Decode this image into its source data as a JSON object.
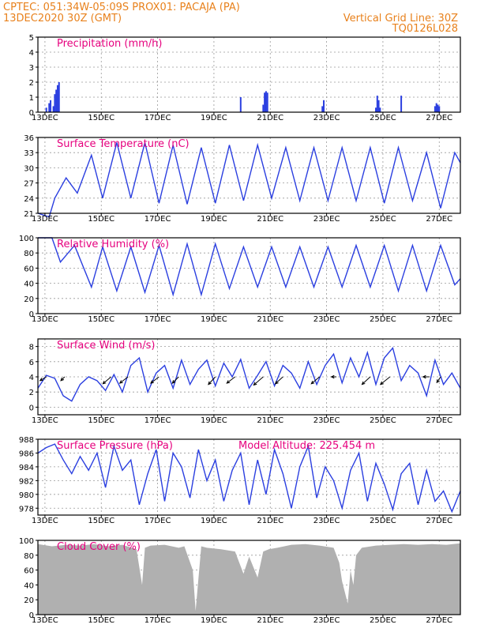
{
  "header": {
    "line1_left": "CPTEC:   051:34W-05:09S   PROX01: PACAJA (PA)",
    "line2_left": "13DEC2020 30Z (GMT)",
    "line2_right": "Vertical Grid Line: 30Z",
    "line3_right": "TQ0126L028"
  },
  "colors": {
    "header": "#e8811c",
    "title": "#e6007e",
    "series": "#2b3fe0",
    "cloud": "#b0b0b0"
  },
  "chart_data": [
    {
      "type": "bar",
      "title": "Precipitation (mm/h)",
      "x_tick_labels": [
        "13DEC",
        "15DEC",
        "17DEC",
        "19DEC",
        "21DEC",
        "23DEC",
        "25DEC",
        "27DEC"
      ],
      "x_range": [
        0,
        15.0
      ],
      "ylim": [
        0,
        5
      ],
      "y_ticks": [
        0,
        1,
        2,
        3,
        4,
        5
      ],
      "grid": true,
      "x": [
        0.3,
        0.4,
        0.45,
        0.55,
        0.6,
        0.65,
        0.7,
        0.75,
        7.2,
        8.0,
        8.05,
        8.1,
        8.15,
        10.1,
        10.15,
        12.0,
        12.05,
        12.1,
        12.15,
        12.9,
        14.1,
        14.15,
        14.2,
        14.25
      ],
      "values": [
        0.3,
        0.6,
        0.8,
        0.4,
        1.2,
        1.5,
        1.8,
        2.0,
        1.0,
        0.5,
        1.3,
        1.4,
        1.3,
        0.4,
        0.8,
        0.3,
        1.1,
        0.8,
        0.3,
        1.1,
        0.4,
        0.6,
        0.5,
        0.4
      ]
    },
    {
      "type": "line",
      "title": "Surface Temperature (nC)",
      "x_tick_labels": [
        "13DEC",
        "15DEC",
        "17DEC",
        "19DEC",
        "21DEC",
        "23DEC",
        "25DEC",
        "27DEC"
      ],
      "x_range": [
        0,
        15.0
      ],
      "ylim": [
        21,
        36
      ],
      "y_ticks": [
        21,
        24,
        27,
        30,
        33,
        36
      ],
      "grid": true,
      "series": [
        {
          "x": [
            0,
            0.4,
            0.6,
            1.0,
            1.4,
            1.9,
            2.3,
            2.8,
            3.3,
            3.8,
            4.3,
            4.8,
            5.3,
            5.8,
            6.3,
            6.8,
            7.3,
            7.8,
            8.3,
            8.8,
            9.3,
            9.8,
            10.3,
            10.8,
            11.3,
            11.8,
            12.3,
            12.8,
            13.3,
            13.8,
            14.3,
            14.8,
            15.0
          ],
          "values": [
            21.0,
            20.3,
            24.0,
            28.0,
            25.0,
            32.5,
            24.0,
            35.0,
            24.0,
            35.0,
            23.0,
            34.5,
            22.8,
            34.0,
            23.0,
            34.5,
            23.5,
            34.5,
            24.0,
            34.0,
            23.5,
            34.0,
            23.5,
            34.0,
            23.5,
            34.0,
            23.0,
            34.0,
            23.5,
            33.0,
            22.0,
            33.0,
            31.0
          ]
        }
      ]
    },
    {
      "type": "line",
      "title": "Relative Humidity (%)",
      "x_tick_labels": [
        "13DEC",
        "15DEC",
        "17DEC",
        "19DEC",
        "21DEC",
        "23DEC",
        "25DEC",
        "27DEC"
      ],
      "x_range": [
        0,
        15.0
      ],
      "ylim": [
        0,
        100
      ],
      "y_ticks": [
        0,
        20,
        40,
        60,
        80,
        100
      ],
      "grid": true,
      "series": [
        {
          "x": [
            0,
            0.5,
            0.8,
            1.3,
            1.9,
            2.3,
            2.8,
            3.3,
            3.8,
            4.3,
            4.8,
            5.3,
            5.8,
            6.3,
            6.8,
            7.3,
            7.8,
            8.3,
            8.8,
            9.3,
            9.8,
            10.3,
            10.8,
            11.3,
            11.8,
            12.3,
            12.8,
            13.3,
            13.8,
            14.3,
            14.8,
            15.0
          ],
          "values": [
            100,
            100,
            68,
            90,
            35,
            88,
            30,
            88,
            28,
            90,
            25,
            92,
            25,
            92,
            33,
            88,
            35,
            88,
            35,
            88,
            35,
            88,
            35,
            90,
            35,
            90,
            30,
            90,
            30,
            90,
            38,
            46
          ]
        }
      ]
    },
    {
      "type": "line",
      "title": "Surface Wind (m/s)",
      "x_tick_labels": [
        "13DEC",
        "15DEC",
        "17DEC",
        "19DEC",
        "21DEC",
        "23DEC",
        "25DEC",
        "27DEC"
      ],
      "x_range": [
        0,
        15.0
      ],
      "ylim": [
        -1,
        9
      ],
      "y_ticks": [
        0,
        2,
        4,
        6,
        8
      ],
      "grid": true,
      "series": [
        {
          "x": [
            0,
            0.3,
            0.6,
            0.9,
            1.2,
            1.5,
            1.8,
            2.1,
            2.4,
            2.7,
            3.0,
            3.3,
            3.6,
            3.9,
            4.2,
            4.5,
            4.8,
            5.1,
            5.4,
            5.7,
            6.0,
            6.3,
            6.6,
            6.9,
            7.2,
            7.5,
            7.8,
            8.1,
            8.4,
            8.7,
            9.0,
            9.3,
            9.6,
            9.9,
            10.2,
            10.5,
            10.8,
            11.1,
            11.4,
            11.7,
            12.0,
            12.3,
            12.6,
            12.9,
            13.2,
            13.5,
            13.8,
            14.1,
            14.4,
            14.7,
            15.0
          ],
          "values": [
            2.5,
            4.2,
            3.8,
            1.5,
            0.8,
            3.0,
            4.0,
            3.5,
            2.2,
            4.3,
            2.0,
            5.5,
            6.5,
            2.0,
            4.5,
            5.5,
            2.5,
            6.2,
            3.0,
            5.0,
            6.2,
            2.8,
            5.8,
            4.0,
            6.3,
            2.5,
            4.2,
            6.0,
            2.8,
            5.5,
            4.5,
            2.5,
            6.0,
            3.0,
            5.5,
            7.0,
            3.2,
            6.5,
            4.0,
            7.2,
            3.0,
            6.5,
            7.8,
            3.5,
            5.5,
            4.5,
            1.5,
            6.2,
            3.0,
            4.5,
            2.5
          ]
        }
      ],
      "wind_vectors": [
        {
          "x": 0.3,
          "y": 4,
          "u": -1.0,
          "v": -0.6
        },
        {
          "x": 0.95,
          "y": 4,
          "u": -0.6,
          "v": -0.6
        },
        {
          "x": 2.6,
          "y": 4,
          "u": -1.3,
          "v": -1.1
        },
        {
          "x": 3.2,
          "y": 4,
          "u": -1.3,
          "v": -1.0
        },
        {
          "x": 4.3,
          "y": 4,
          "u": -1.3,
          "v": -1.0
        },
        {
          "x": 5.0,
          "y": 4,
          "u": -1.0,
          "v": -1.0
        },
        {
          "x": 6.3,
          "y": 4,
          "u": -1.1,
          "v": -1.2
        },
        {
          "x": 7.0,
          "y": 4,
          "u": -1.3,
          "v": -1.0
        },
        {
          "x": 8.0,
          "y": 4,
          "u": -1.5,
          "v": -1.3
        },
        {
          "x": 8.7,
          "y": 4,
          "u": -1.2,
          "v": -1.1
        },
        {
          "x": 10.0,
          "y": 4,
          "u": -1.3,
          "v": -1.1
        },
        {
          "x": 10.6,
          "y": 4,
          "u": -0.8,
          "v": 0.0
        },
        {
          "x": 11.8,
          "y": 4,
          "u": -1.3,
          "v": -1.2
        },
        {
          "x": 12.5,
          "y": 4,
          "u": -1.5,
          "v": -1.2
        },
        {
          "x": 13.9,
          "y": 4,
          "u": -1.0,
          "v": 0.0
        },
        {
          "x": 14.3,
          "y": 4,
          "u": -0.6,
          "v": -0.9
        }
      ]
    },
    {
      "type": "line",
      "title": "Surface Pressure (hPa)",
      "annotation": "Model Altitude: 225.454  m",
      "x_tick_labels": [
        "13DEC",
        "15DEC",
        "17DEC",
        "19DEC",
        "21DEC",
        "23DEC",
        "25DEC",
        "27DEC"
      ],
      "x_range": [
        0,
        15.0
      ],
      "ylim": [
        977,
        988
      ],
      "y_ticks": [
        978,
        980,
        982,
        984,
        986,
        988
      ],
      "grid": true,
      "series": [
        {
          "x": [
            0,
            0.3,
            0.6,
            0.9,
            1.2,
            1.5,
            1.8,
            2.1,
            2.4,
            2.7,
            3.0,
            3.3,
            3.6,
            3.9,
            4.2,
            4.5,
            4.8,
            5.1,
            5.4,
            5.7,
            6.0,
            6.3,
            6.6,
            6.9,
            7.2,
            7.5,
            7.8,
            8.1,
            8.4,
            8.7,
            9.0,
            9.3,
            9.6,
            9.9,
            10.2,
            10.5,
            10.8,
            11.1,
            11.4,
            11.7,
            12.0,
            12.3,
            12.6,
            12.9,
            13.2,
            13.5,
            13.8,
            14.1,
            14.4,
            14.7,
            15.0
          ],
          "values": [
            986.0,
            986.8,
            987.3,
            985.0,
            983.0,
            985.5,
            983.5,
            986.0,
            981.0,
            987.0,
            983.5,
            985.0,
            978.5,
            983.0,
            986.5,
            979.0,
            986.0,
            984.0,
            979.5,
            986.5,
            982.0,
            985.0,
            979.0,
            983.5,
            986.0,
            978.5,
            985.0,
            980.0,
            986.5,
            983.0,
            978.0,
            984.0,
            987.0,
            979.5,
            984.0,
            982.0,
            978.0,
            983.5,
            986.0,
            979.0,
            984.5,
            981.5,
            977.8,
            983.0,
            984.5,
            978.5,
            983.5,
            979.0,
            980.5,
            977.5,
            980.5
          ]
        }
      ]
    },
    {
      "type": "area",
      "title": "Cloud Cover (%)",
      "x_tick_labels": [
        "13DEC",
        "15DEC",
        "17DEC",
        "19DEC",
        "21DEC",
        "23DEC",
        "25DEC",
        "27DEC"
      ],
      "x_range": [
        0,
        15.0
      ],
      "ylim": [
        0,
        100
      ],
      "y_ticks": [
        0,
        20,
        40,
        60,
        80,
        100
      ],
      "grid": true,
      "series": [
        {
          "x": [
            0,
            0.5,
            1.0,
            1.5,
            2.0,
            2.5,
            3.0,
            3.5,
            3.7,
            3.8,
            4.0,
            4.5,
            5.0,
            5.2,
            5.5,
            5.6,
            5.8,
            6.0,
            6.5,
            7.0,
            7.3,
            7.5,
            7.8,
            8.0,
            8.2,
            8.5,
            9.0,
            9.5,
            10.0,
            10.5,
            10.7,
            10.8,
            10.9,
            11.0,
            11.1,
            11.2,
            11.3,
            11.5,
            12.0,
            12.5,
            13.0,
            13.5,
            14.0,
            14.5,
            15.0
          ],
          "values": [
            95,
            92,
            94,
            93,
            95,
            92,
            94,
            88,
            40,
            90,
            93,
            94,
            90,
            92,
            60,
            5,
            92,
            90,
            88,
            85,
            55,
            78,
            50,
            85,
            88,
            90,
            94,
            95,
            93,
            90,
            70,
            45,
            30,
            15,
            60,
            40,
            80,
            90,
            93,
            94,
            95,
            94,
            95,
            94,
            96
          ]
        }
      ]
    }
  ]
}
